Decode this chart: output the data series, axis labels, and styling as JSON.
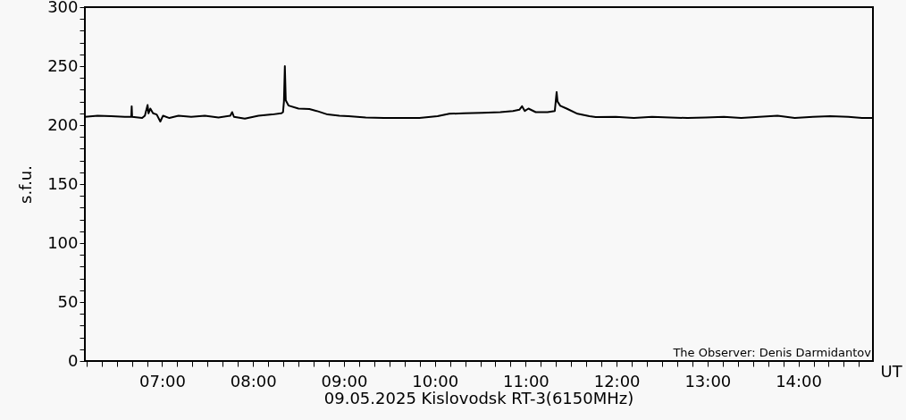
{
  "chart_data": {
    "type": "line",
    "title": "09.05.2025 Kislovodsk RT-3(6150MHz)",
    "xlabel": "UT",
    "ylabel": "s.f.u.",
    "annotations": [
      "The Observer: Denis Darmidantov"
    ],
    "x": [
      6.15,
      6.29,
      6.44,
      6.59,
      6.66,
      6.665,
      6.67,
      6.78,
      6.81,
      6.84,
      6.85,
      6.87,
      6.9,
      6.94,
      6.98,
      7.01,
      7.08,
      7.18,
      7.32,
      7.47,
      7.62,
      7.75,
      7.77,
      7.79,
      7.91,
      8.06,
      8.21,
      8.31,
      8.33,
      8.34,
      8.35,
      8.36,
      8.39,
      8.5,
      8.62,
      8.7,
      8.82,
      8.95,
      9.05,
      9.24,
      9.44,
      9.64,
      9.83,
      10.03,
      10.16,
      10.32,
      10.52,
      10.72,
      10.86,
      10.93,
      10.96,
      10.99,
      11.03,
      11.11,
      11.24,
      11.32,
      11.34,
      11.35,
      11.38,
      11.45,
      11.57,
      11.7,
      11.77,
      11.99,
      12.19,
      12.39,
      12.59,
      12.78,
      12.98,
      13.18,
      13.37,
      13.57,
      13.77,
      13.96,
      14.16,
      14.35,
      14.55,
      14.7,
      14.82
    ],
    "series": [
      {
        "color": "#000000",
        "values": [
          207,
          208,
          207.5,
          207,
          207,
          216,
          207,
          206,
          208,
          217,
          210,
          214,
          210,
          209,
          203,
          208,
          206,
          208,
          207,
          208,
          206.5,
          208,
          211,
          207,
          205.5,
          208,
          209,
          210,
          211,
          220,
          250,
          221,
          216.6,
          214,
          213.6,
          212,
          209,
          208,
          207.5,
          206.5,
          206,
          206,
          206,
          207.5,
          209.6,
          210,
          210.5,
          211,
          212,
          213,
          216,
          212,
          214,
          211,
          211,
          212,
          228,
          220,
          216.4,
          214,
          209.6,
          207.5,
          206.8,
          207,
          206,
          207,
          206.5,
          206,
          206.5,
          207,
          206,
          207,
          208,
          206,
          207,
          207.5,
          207,
          206,
          206
        ]
      }
    ],
    "xlim": [
      6.15,
      14.82
    ],
    "ylim": [
      0,
      300
    ],
    "xticks": [
      {
        "value": 6.1667,
        "label": null
      },
      {
        "value": 6.3333,
        "label": null
      },
      {
        "value": 6.5,
        "label": null
      },
      {
        "value": 6.6667,
        "label": null
      },
      {
        "value": 6.8333,
        "label": null
      },
      {
        "value": 7,
        "label": "07:00"
      },
      {
        "value": 7.1667,
        "label": null
      },
      {
        "value": 7.3333,
        "label": null
      },
      {
        "value": 7.5,
        "label": null
      },
      {
        "value": 7.6667,
        "label": null
      },
      {
        "value": 7.8333,
        "label": null
      },
      {
        "value": 8,
        "label": "08:00"
      },
      {
        "value": 8.1667,
        "label": null
      },
      {
        "value": 8.3333,
        "label": null
      },
      {
        "value": 8.5,
        "label": null
      },
      {
        "value": 8.6667,
        "label": null
      },
      {
        "value": 8.8333,
        "label": null
      },
      {
        "value": 9,
        "label": "09:00"
      },
      {
        "value": 9.1667,
        "label": null
      },
      {
        "value": 9.3333,
        "label": null
      },
      {
        "value": 9.5,
        "label": null
      },
      {
        "value": 9.6667,
        "label": null
      },
      {
        "value": 9.8333,
        "label": null
      },
      {
        "value": 10,
        "label": "10:00"
      },
      {
        "value": 10.1667,
        "label": null
      },
      {
        "value": 10.3333,
        "label": null
      },
      {
        "value": 10.5,
        "label": null
      },
      {
        "value": 10.6667,
        "label": null
      },
      {
        "value": 10.8333,
        "label": null
      },
      {
        "value": 11,
        "label": "11:00"
      },
      {
        "value": 11.1667,
        "label": null
      },
      {
        "value": 11.3333,
        "label": null
      },
      {
        "value": 11.5,
        "label": null
      },
      {
        "value": 11.6667,
        "label": null
      },
      {
        "value": 11.8333,
        "label": null
      },
      {
        "value": 12,
        "label": "12:00"
      },
      {
        "value": 12.1667,
        "label": null
      },
      {
        "value": 12.3333,
        "label": null
      },
      {
        "value": 12.5,
        "label": null
      },
      {
        "value": 12.6667,
        "label": null
      },
      {
        "value": 12.8333,
        "label": null
      },
      {
        "value": 13,
        "label": "13:00"
      },
      {
        "value": 13.1667,
        "label": null
      },
      {
        "value": 13.3333,
        "label": null
      },
      {
        "value": 13.5,
        "label": null
      },
      {
        "value": 13.6667,
        "label": null
      },
      {
        "value": 13.8333,
        "label": null
      },
      {
        "value": 14,
        "label": "14:00"
      },
      {
        "value": 14.1667,
        "label": null
      },
      {
        "value": 14.3333,
        "label": null
      },
      {
        "value": 14.5,
        "label": null
      },
      {
        "value": 14.6667,
        "label": null
      }
    ],
    "yticks": [
      0,
      {
        "value": 10,
        "label": null
      },
      {
        "value": 20,
        "label": null
      },
      {
        "value": 30,
        "label": null
      },
      {
        "value": 40,
        "label": null
      },
      50,
      {
        "value": 60,
        "label": null
      },
      {
        "value": 70,
        "label": null
      },
      {
        "value": 80,
        "label": null
      },
      {
        "value": 90,
        "label": null
      },
      100,
      {
        "value": 110,
        "label": null
      },
      {
        "value": 120,
        "label": null
      },
      {
        "value": 130,
        "label": null
      },
      {
        "value": 140,
        "label": null
      },
      150,
      {
        "value": 160,
        "label": null
      },
      {
        "value": 170,
        "label": null
      },
      {
        "value": 180,
        "label": null
      },
      {
        "value": 190,
        "label": null
      },
      200,
      {
        "value": 210,
        "label": null
      },
      {
        "value": 220,
        "label": null
      },
      {
        "value": 230,
        "label": null
      },
      {
        "value": 240,
        "label": null
      },
      250,
      {
        "value": 260,
        "label": null
      },
      {
        "value": 270,
        "label": null
      },
      {
        "value": 280,
        "label": null
      },
      {
        "value": 290,
        "label": null
      },
      300
    ],
    "grid": false
  }
}
